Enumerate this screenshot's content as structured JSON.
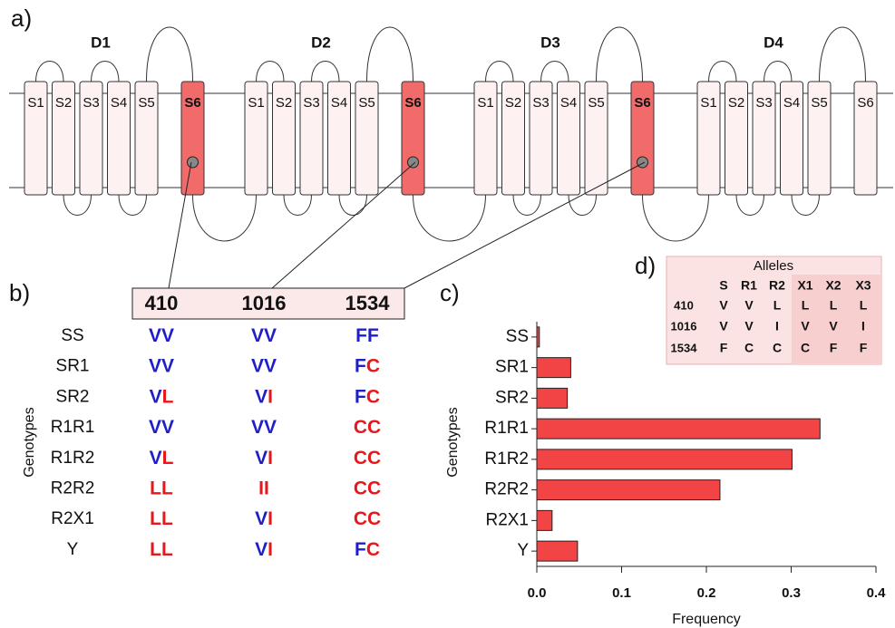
{
  "panel_labels": [
    "a)",
    "b)",
    "c)",
    "d)"
  ],
  "diagram": {
    "domains": [
      {
        "label": "D1",
        "segments": [
          "S1",
          "S2",
          "S3",
          "S4",
          "S5",
          "S6"
        ],
        "highlight_color": "#f26b6b"
      },
      {
        "label": "D2",
        "segments": [
          "S1",
          "S2",
          "S3",
          "S4",
          "S5",
          "S6"
        ],
        "highlight_color": "#f26b6b"
      },
      {
        "label": "D3",
        "segments": [
          "S1",
          "S2",
          "S3",
          "S4",
          "S5",
          "S6"
        ],
        "highlight_color": "#f26b6b"
      },
      {
        "label": "D4",
        "segments": [
          "S1",
          "S2",
          "S3",
          "S4",
          "S5",
          "S6"
        ],
        "highlight_color": null
      }
    ]
  },
  "genotype_table": {
    "axis_label": "Genotypes",
    "headers": [
      "410",
      "1016",
      "1534"
    ],
    "allele_colors": {
      "V": "#1f1fc8",
      "F": "#1f1fc8",
      "L": "#e8171b",
      "I": "#e8171b",
      "C": "#e8171b"
    },
    "rows": [
      {
        "genotype": "SS",
        "cells": [
          [
            "V",
            "V"
          ],
          [
            "V",
            "V"
          ],
          [
            "F",
            "F"
          ]
        ]
      },
      {
        "genotype": "SR1",
        "cells": [
          [
            "V",
            "V"
          ],
          [
            "V",
            "V"
          ],
          [
            "F",
            "C"
          ]
        ]
      },
      {
        "genotype": "SR2",
        "cells": [
          [
            "V",
            "L"
          ],
          [
            "V",
            "I"
          ],
          [
            "F",
            "C"
          ]
        ]
      },
      {
        "genotype": "R1R1",
        "cells": [
          [
            "V",
            "V"
          ],
          [
            "V",
            "V"
          ],
          [
            "C",
            "C"
          ]
        ]
      },
      {
        "genotype": "R1R2",
        "cells": [
          [
            "V",
            "L"
          ],
          [
            "V",
            "I"
          ],
          [
            "C",
            "C"
          ]
        ]
      },
      {
        "genotype": "R2R2",
        "cells": [
          [
            "L",
            "L"
          ],
          [
            "I",
            "I"
          ],
          [
            "C",
            "C"
          ]
        ]
      },
      {
        "genotype": "R2X1",
        "cells": [
          [
            "L",
            "L"
          ],
          [
            "V",
            "I"
          ],
          [
            "C",
            "C"
          ]
        ]
      },
      {
        "genotype": "Y",
        "cells": [
          [
            "L",
            "L"
          ],
          [
            "V",
            "I"
          ],
          [
            "F",
            "C"
          ]
        ]
      }
    ]
  },
  "chart_data": {
    "type": "hbar",
    "x_label": "Frequency",
    "y_label": "Genotypes",
    "categories": [
      "SS",
      "SR1",
      "SR2",
      "R1R1",
      "R1R2",
      "R2R2",
      "R2X1",
      "Y"
    ],
    "values": [
      0.003,
      0.04,
      0.036,
      0.334,
      0.301,
      0.216,
      0.018,
      0.048
    ],
    "color": "#f24444",
    "xlim": [
      0,
      0.4
    ],
    "xticks": [
      {
        "value": 0,
        "label": "0.0"
      },
      0.1,
      0.2,
      0.3,
      0.4
    ]
  },
  "allele_table": {
    "title": "Alleles",
    "columns": [
      "S",
      "R1",
      "R2",
      "X1",
      "X2",
      "X3"
    ],
    "rows": [
      {
        "label": "410",
        "cells": [
          "V",
          "V",
          "L",
          "L",
          "L",
          "L"
        ]
      },
      {
        "label": "1016",
        "cells": [
          "V",
          "V",
          "I",
          "V",
          "V",
          "I"
        ]
      },
      {
        "label": "1534",
        "cells": [
          "F",
          "C",
          "C",
          "C",
          "F",
          "F"
        ]
      }
    ]
  }
}
